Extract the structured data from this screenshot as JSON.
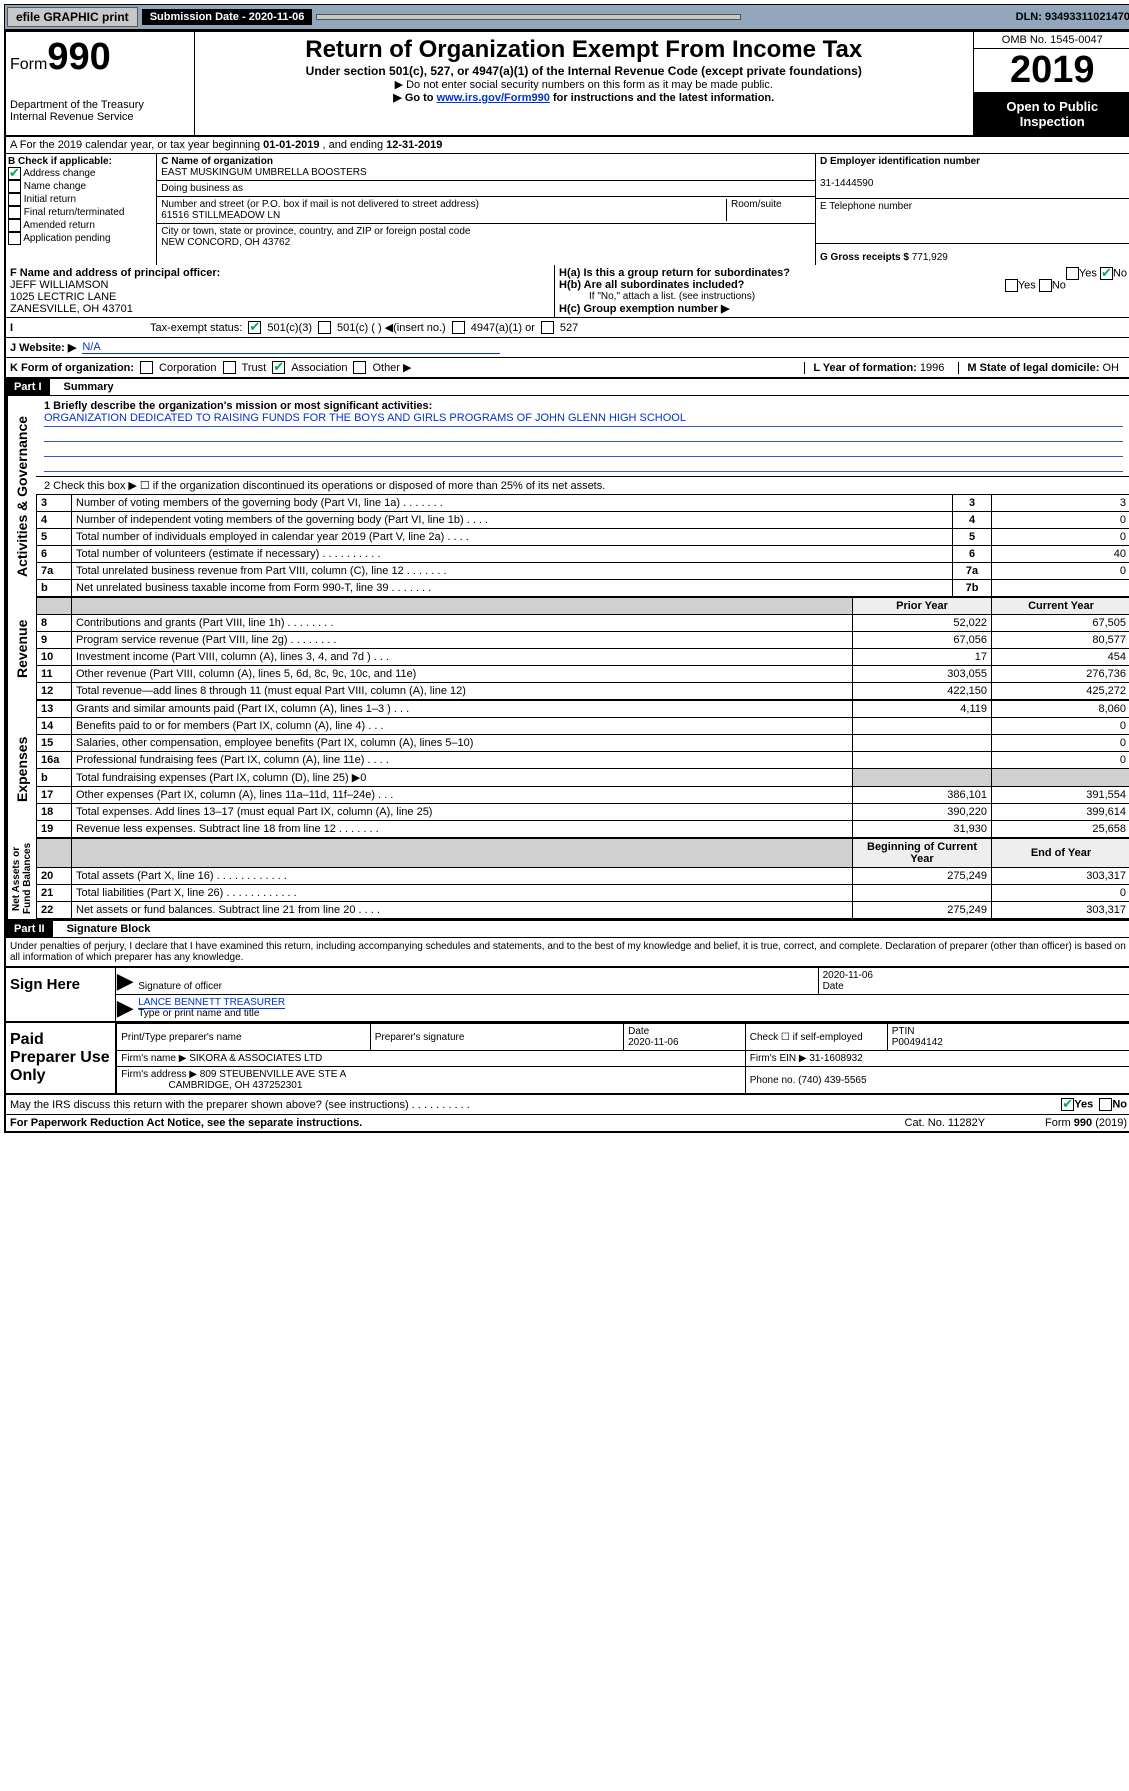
{
  "top": {
    "efile": "efile GRAPHIC print",
    "submission_label": "Submission Date - 2020-11-06",
    "dln": "DLN: 93493311021470"
  },
  "header": {
    "form_prefix": "Form",
    "form_number": "990",
    "dept": "Department of the Treasury\nInternal Revenue Service",
    "title": "Return of Organization Exempt From Income Tax",
    "subtitle": "Under section 501(c), 527, or 4947(a)(1) of the Internal Revenue Code (except private foundations)",
    "note1": "▶ Do not enter social security numbers on this form as it may be made public.",
    "note2_pre": "▶ Go to ",
    "note2_link": "www.irs.gov/Form990",
    "note2_post": " for instructions and the latest information.",
    "omb": "OMB No. 1545-0047",
    "year": "2019",
    "open": "Open to Public Inspection"
  },
  "lineA": {
    "text_pre": "A For the 2019 calendar year, or tax year beginning ",
    "begin": "01-01-2019",
    "mid": " , and ending ",
    "end": "12-31-2019"
  },
  "boxB": {
    "label": "B Check if applicable:",
    "items": [
      "Address change",
      "Name change",
      "Initial return",
      "Final return/terminated",
      "Amended return",
      "Application pending"
    ],
    "checked_idx": 0
  },
  "boxC": {
    "name_label": "C Name of organization",
    "org": "EAST MUSKINGUM UMBRELLA BOOSTERS",
    "dba_label": "Doing business as",
    "addr_label": "Number and street (or P.O. box if mail is not delivered to street address)",
    "room_label": "Room/suite",
    "addr": "61516 STILLMEADOW LN",
    "city_label": "City or town, state or province, country, and ZIP or foreign postal code",
    "city": "NEW CONCORD, OH  43762"
  },
  "boxD": {
    "label": "D Employer identification number",
    "ein": "31-1444590"
  },
  "boxE": {
    "label": "E Telephone number",
    "phone": ""
  },
  "boxG": {
    "label": "G Gross receipts $",
    "amount": "771,929"
  },
  "boxF": {
    "label": "F  Name and address of principal officer:",
    "name": "JEFF WILLIAMSON",
    "addr1": "1025 LECTRIC LANE",
    "addr2": "ZANESVILLE, OH  43701"
  },
  "boxH": {
    "ha": "H(a)  Is this a group return for subordinates?",
    "ha_yes": "Yes",
    "ha_no": "No",
    "hb": "H(b)  Are all subordinates included?",
    "hb_note": "If \"No,\" attach a list. (see instructions)",
    "hc": "H(c)  Group exemption number ▶"
  },
  "taxStatus": {
    "label": "Tax-exempt status:",
    "c3": "501(c)(3)",
    "c_other": "501(c) (   ) ◀(insert no.)",
    "a4947": "4947(a)(1) or",
    "s527": "527"
  },
  "lineJ": {
    "label": "J   Website: ▶",
    "val": "N/A"
  },
  "lineK": {
    "label": "K Form of organization:",
    "corp": "Corporation",
    "trust": "Trust",
    "assoc": "Association",
    "other": "Other ▶"
  },
  "lineL": {
    "label": "L Year of formation:",
    "val": "1996"
  },
  "lineM": {
    "label": "M State of legal domicile:",
    "val": "OH"
  },
  "part1": {
    "header": "Part I",
    "title": "Summary"
  },
  "summary": {
    "l1_label": "1  Briefly describe the organization's mission or most significant activities:",
    "l1_text": "ORGANIZATION DEDICATED TO RAISING FUNDS FOR THE BOYS AND GIRLS PROGRAMS OF JOHN GLENN HIGH SCHOOL",
    "l2": "2   Check this box ▶ ☐ if the organization discontinued its operations or disposed of more than 25% of its net assets.",
    "rows_gov": [
      {
        "n": "3",
        "d": "Number of voting members of the governing body (Part VI, line 1a) . . . . . . .",
        "b": "3",
        "v": "3"
      },
      {
        "n": "4",
        "d": "Number of independent voting members of the governing body (Part VI, line 1b) . . . .",
        "b": "4",
        "v": "0"
      },
      {
        "n": "5",
        "d": "Total number of individuals employed in calendar year 2019 (Part V, line 2a) . . . .",
        "b": "5",
        "v": "0"
      },
      {
        "n": "6",
        "d": "Total number of volunteers (estimate if necessary) . . . . . . . . . .",
        "b": "6",
        "v": "40"
      },
      {
        "n": "7a",
        "d": "Total unrelated business revenue from Part VIII, column (C), line 12 . . . . . . .",
        "b": "7a",
        "v": "0"
      },
      {
        "n": "b",
        "d": "Net unrelated business taxable income from Form 990-T, line 39 . . . . . . .",
        "b": "7b",
        "v": ""
      }
    ],
    "prior_h": "Prior Year",
    "curr_h": "Current Year",
    "rows_rev": [
      {
        "n": "8",
        "d": "Contributions and grants (Part VIII, line 1h) . . . . . . . .",
        "p": "52,022",
        "c": "67,505"
      },
      {
        "n": "9",
        "d": "Program service revenue (Part VIII, line 2g) . . . . . . . .",
        "p": "67,056",
        "c": "80,577"
      },
      {
        "n": "10",
        "d": "Investment income (Part VIII, column (A), lines 3, 4, and 7d ) . . .",
        "p": "17",
        "c": "454"
      },
      {
        "n": "11",
        "d": "Other revenue (Part VIII, column (A), lines 5, 6d, 8c, 9c, 10c, and 11e)",
        "p": "303,055",
        "c": "276,736"
      },
      {
        "n": "12",
        "d": "Total revenue—add lines 8 through 11 (must equal Part VIII, column (A), line 12)",
        "p": "422,150",
        "c": "425,272"
      }
    ],
    "rows_exp": [
      {
        "n": "13",
        "d": "Grants and similar amounts paid (Part IX, column (A), lines 1–3 ) . . .",
        "p": "4,119",
        "c": "8,060"
      },
      {
        "n": "14",
        "d": "Benefits paid to or for members (Part IX, column (A), line 4) . . .",
        "p": "",
        "c": "0"
      },
      {
        "n": "15",
        "d": "Salaries, other compensation, employee benefits (Part IX, column (A), lines 5–10)",
        "p": "",
        "c": "0"
      },
      {
        "n": "16a",
        "d": "Professional fundraising fees (Part IX, column (A), line 11e) . . . .",
        "p": "",
        "c": "0"
      },
      {
        "n": "b",
        "d": "Total fundraising expenses (Part IX, column (D), line 25) ▶0",
        "p": "shade",
        "c": "shade"
      },
      {
        "n": "17",
        "d": "Other expenses (Part IX, column (A), lines 11a–11d, 11f–24e) . . .",
        "p": "386,101",
        "c": "391,554"
      },
      {
        "n": "18",
        "d": "Total expenses. Add lines 13–17 (must equal Part IX, column (A), line 25)",
        "p": "390,220",
        "c": "399,614"
      },
      {
        "n": "19",
        "d": "Revenue less expenses. Subtract line 18 from line 12 . . . . . . .",
        "p": "31,930",
        "c": "25,658"
      }
    ],
    "beg_h": "Beginning of Current Year",
    "end_h": "End of Year",
    "rows_net": [
      {
        "n": "20",
        "d": "Total assets (Part X, line 16) . . . . . . . . . . . .",
        "p": "275,249",
        "c": "303,317"
      },
      {
        "n": "21",
        "d": "Total liabilities (Part X, line 26) . . . . . . . . . . . .",
        "p": "",
        "c": "0"
      },
      {
        "n": "22",
        "d": "Net assets or fund balances. Subtract line 21 from line 20 . . . .",
        "p": "275,249",
        "c": "303,317"
      }
    ]
  },
  "vtabs": {
    "gov": "Activities & Governance",
    "rev": "Revenue",
    "exp": "Expenses",
    "net": "Net Assets or\nFund Balances"
  },
  "part2": {
    "header": "Part II",
    "title": "Signature Block",
    "perjury": "Under penalties of perjury, I declare that I have examined this return, including accompanying schedules and statements, and to the best of my knowledge and belief, it is true, correct, and complete. Declaration of preparer (other than officer) is based on all information of which preparer has any knowledge."
  },
  "sign": {
    "here": "Sign Here",
    "sig_officer": "Signature of officer",
    "date": "Date",
    "date_val": "2020-11-06",
    "name": "LANCE BENNETT  TREASURER",
    "name_label": "Type or print name and title"
  },
  "prep": {
    "label": "Paid Preparer Use Only",
    "h1": "Print/Type preparer's name",
    "h2": "Preparer's signature",
    "h3": "Date",
    "h3v": "2020-11-06",
    "h4": "Check ☐ if self-employed",
    "h5": "PTIN",
    "ptin": "P00494142",
    "firm_name_l": "Firm's name    ▶",
    "firm_name": "SIKORA & ASSOCIATES LTD",
    "firm_ein_l": "Firm's EIN ▶",
    "firm_ein": "31-1608932",
    "firm_addr_l": "Firm's address ▶",
    "firm_addr": "809 STEUBENVILLE AVE STE A",
    "firm_city": "CAMBRIDGE, OH  437252301",
    "phone_l": "Phone no.",
    "phone": "(740) 439-5565"
  },
  "discuss": {
    "q": "May the IRS discuss this return with the preparer shown above? (see instructions) . . . . . . . . . .",
    "yes": "Yes",
    "no": "No"
  },
  "footer": {
    "pra": "For Paperwork Reduction Act Notice, see the separate instructions.",
    "cat": "Cat. No. 11282Y",
    "form": "Form 990 (2019)"
  }
}
